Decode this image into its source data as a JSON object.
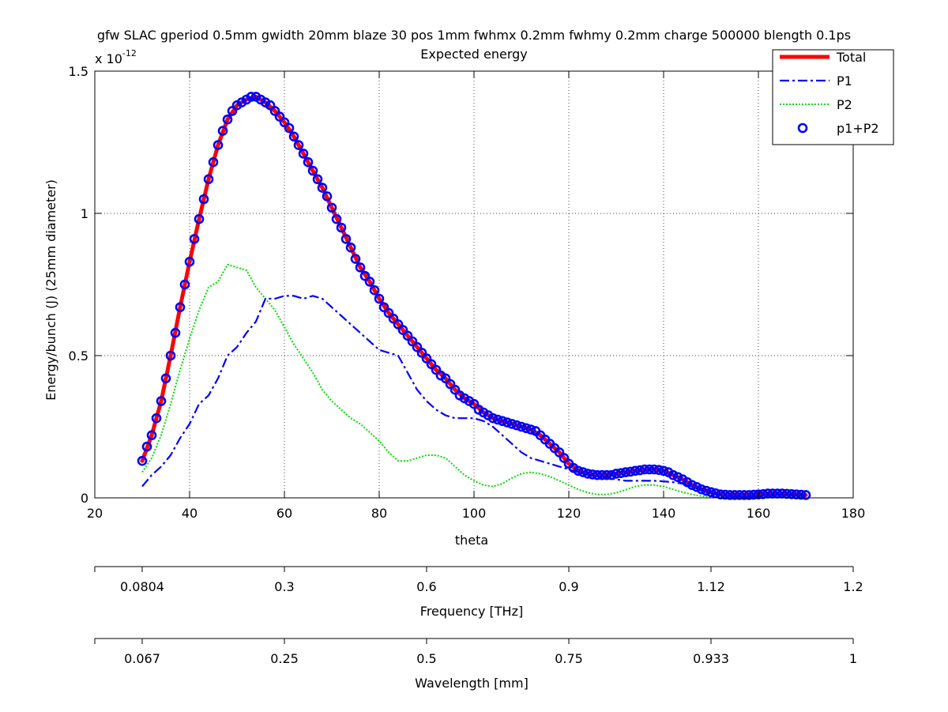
{
  "chart_data": {
    "type": "line",
    "title": "gfw SLAC gperiod 0.5mm gwidth 20mm blaze 30 pos 1mm fwhmx 0.2mm fwhmy 0.2mm charge 500000 blength 0.1ps",
    "subtitle": "Expected energy",
    "xlabel": "theta",
    "ylabel": "Energy/bunch (J) (25mm diameter)",
    "y_exponent_label": "x 10",
    "y_exponent_power": "-12",
    "xlim": [
      20,
      180
    ],
    "ylim": [
      0,
      1.5
    ],
    "grid": true,
    "legend_position": "top-right",
    "x_ticks": [
      20,
      40,
      60,
      80,
      100,
      120,
      140,
      160,
      180
    ],
    "y_ticks": [
      0,
      0.5,
      1,
      1.5
    ],
    "x_tick_labels": [
      "20",
      "40",
      "60",
      "80",
      "100",
      "120",
      "140",
      "160",
      "180"
    ],
    "y_tick_labels": [
      "0",
      "0.5",
      "1",
      "1.5"
    ],
    "series": [
      {
        "name": "Total",
        "style": "solid",
        "color": "#ff0000",
        "x": [
          30,
          32,
          34,
          36,
          38,
          40,
          42,
          44,
          46,
          48,
          50,
          52,
          54,
          56,
          58,
          60,
          62,
          64,
          66,
          68,
          70,
          72,
          74,
          76,
          78,
          80,
          82,
          84,
          86,
          88,
          90,
          92,
          94,
          96,
          98,
          100,
          102,
          104,
          106,
          108,
          110,
          112,
          114,
          116,
          118,
          120,
          122,
          124,
          126,
          128,
          130,
          132,
          134,
          136,
          138,
          140,
          142,
          144,
          146,
          148,
          150,
          152,
          154,
          156,
          158,
          160,
          162,
          164,
          166,
          168,
          170
        ],
        "values": [
          0.13,
          0.22,
          0.34,
          0.5,
          0.67,
          0.83,
          0.98,
          1.12,
          1.24,
          1.33,
          1.38,
          1.4,
          1.41,
          1.39,
          1.36,
          1.32,
          1.27,
          1.21,
          1.15,
          1.09,
          1.02,
          0.95,
          0.88,
          0.81,
          0.76,
          0.7,
          0.65,
          0.61,
          0.57,
          0.53,
          0.49,
          0.45,
          0.42,
          0.38,
          0.35,
          0.33,
          0.3,
          0.28,
          0.27,
          0.26,
          0.25,
          0.24,
          0.22,
          0.19,
          0.16,
          0.12,
          0.095,
          0.085,
          0.08,
          0.08,
          0.085,
          0.09,
          0.095,
          0.1,
          0.1,
          0.095,
          0.08,
          0.065,
          0.045,
          0.03,
          0.02,
          0.012,
          0.01,
          0.01,
          0.01,
          0.012,
          0.015,
          0.015,
          0.014,
          0.012,
          0.01
        ]
      },
      {
        "name": "P1",
        "style": "dashdot",
        "color": "#0000ff",
        "x": [
          30,
          32,
          34,
          36,
          38,
          40,
          42,
          44,
          46,
          48,
          50,
          52,
          54,
          56,
          58,
          60,
          62,
          64,
          66,
          68,
          70,
          72,
          74,
          76,
          78,
          80,
          82,
          84,
          86,
          88,
          90,
          92,
          94,
          96,
          98,
          100,
          102,
          104,
          106,
          108,
          110,
          112,
          114,
          116,
          118,
          120,
          122,
          124,
          126,
          128,
          130,
          132,
          134,
          136,
          138,
          140,
          142,
          144,
          146,
          148,
          150,
          152,
          154,
          156,
          158,
          160,
          162,
          164,
          166,
          168,
          170
        ],
        "values": [
          0.04,
          0.08,
          0.11,
          0.15,
          0.21,
          0.26,
          0.33,
          0.36,
          0.42,
          0.5,
          0.53,
          0.58,
          0.62,
          0.7,
          0.7,
          0.71,
          0.71,
          0.7,
          0.71,
          0.7,
          0.67,
          0.64,
          0.61,
          0.58,
          0.55,
          0.52,
          0.51,
          0.5,
          0.44,
          0.38,
          0.34,
          0.31,
          0.29,
          0.28,
          0.28,
          0.28,
          0.27,
          0.25,
          0.22,
          0.19,
          0.16,
          0.14,
          0.13,
          0.12,
          0.11,
          0.1,
          0.09,
          0.08,
          0.075,
          0.07,
          0.065,
          0.06,
          0.06,
          0.06,
          0.06,
          0.058,
          0.055,
          0.05,
          0.04,
          0.025,
          0.015,
          0.01,
          0.008,
          0.005,
          0.005,
          0.006,
          0.008,
          0.01,
          0.01,
          0.009,
          0.008
        ]
      },
      {
        "name": "P2",
        "style": "dotted",
        "color": "#00dd00",
        "x": [
          30,
          32,
          34,
          36,
          38,
          40,
          42,
          44,
          46,
          48,
          50,
          52,
          54,
          56,
          58,
          60,
          62,
          64,
          66,
          68,
          70,
          72,
          74,
          76,
          78,
          80,
          82,
          84,
          86,
          88,
          90,
          92,
          94,
          96,
          98,
          100,
          102,
          104,
          106,
          108,
          110,
          112,
          114,
          116,
          118,
          120,
          122,
          124,
          126,
          128,
          130,
          132,
          134,
          136,
          138,
          140,
          142,
          144,
          146,
          148,
          150,
          152,
          154,
          156,
          158,
          160,
          162,
          164,
          166,
          168,
          170
        ],
        "values": [
          0.09,
          0.14,
          0.22,
          0.33,
          0.45,
          0.56,
          0.66,
          0.74,
          0.76,
          0.82,
          0.81,
          0.8,
          0.74,
          0.7,
          0.66,
          0.6,
          0.54,
          0.49,
          0.44,
          0.38,
          0.34,
          0.31,
          0.28,
          0.26,
          0.23,
          0.2,
          0.16,
          0.13,
          0.13,
          0.14,
          0.15,
          0.15,
          0.14,
          0.11,
          0.08,
          0.06,
          0.045,
          0.04,
          0.05,
          0.07,
          0.085,
          0.09,
          0.085,
          0.075,
          0.06,
          0.045,
          0.03,
          0.018,
          0.012,
          0.012,
          0.018,
          0.028,
          0.04,
          0.045,
          0.045,
          0.04,
          0.03,
          0.02,
          0.012,
          0.006,
          0.004,
          0.003,
          0.003,
          0.003,
          0.003,
          0.004,
          0.005,
          0.006,
          0.006,
          0.005,
          0.004
        ]
      },
      {
        "name": "p1+P2",
        "style": "markers",
        "color": "#0000ff",
        "x": [
          30,
          31,
          32,
          33,
          34,
          35,
          36,
          37,
          38,
          39,
          40,
          41,
          42,
          43,
          44,
          45,
          46,
          47,
          48,
          49,
          50,
          51,
          52,
          53,
          54,
          55,
          56,
          57,
          58,
          59,
          60,
          61,
          62,
          63,
          64,
          65,
          66,
          67,
          68,
          69,
          70,
          71,
          72,
          73,
          74,
          75,
          76,
          77,
          78,
          79,
          80,
          81,
          82,
          83,
          84,
          85,
          86,
          87,
          88,
          89,
          90,
          91,
          92,
          93,
          94,
          95,
          96,
          97,
          98,
          99,
          100,
          101,
          102,
          103,
          104,
          105,
          106,
          107,
          108,
          109,
          110,
          111,
          112,
          113,
          114,
          115,
          116,
          117,
          118,
          119,
          120,
          121,
          122,
          123,
          124,
          125,
          126,
          127,
          128,
          129,
          130,
          131,
          132,
          133,
          134,
          135,
          136,
          137,
          138,
          139,
          140,
          141,
          142,
          143,
          144,
          145,
          146,
          147,
          148,
          149,
          150,
          151,
          152,
          153,
          154,
          155,
          156,
          157,
          158,
          159,
          160,
          161,
          162,
          163,
          164,
          165,
          166,
          167,
          168,
          169,
          170
        ],
        "values": [
          0.13,
          0.18,
          0.22,
          0.28,
          0.34,
          0.42,
          0.5,
          0.58,
          0.67,
          0.75,
          0.83,
          0.91,
          0.98,
          1.05,
          1.12,
          1.18,
          1.24,
          1.29,
          1.33,
          1.36,
          1.38,
          1.39,
          1.4,
          1.41,
          1.41,
          1.4,
          1.39,
          1.38,
          1.36,
          1.34,
          1.32,
          1.3,
          1.27,
          1.24,
          1.21,
          1.18,
          1.15,
          1.12,
          1.09,
          1.06,
          1.02,
          0.98,
          0.95,
          0.91,
          0.88,
          0.84,
          0.81,
          0.78,
          0.76,
          0.73,
          0.7,
          0.67,
          0.65,
          0.63,
          0.61,
          0.59,
          0.57,
          0.55,
          0.53,
          0.51,
          0.49,
          0.47,
          0.45,
          0.43,
          0.42,
          0.4,
          0.38,
          0.36,
          0.35,
          0.34,
          0.33,
          0.31,
          0.3,
          0.29,
          0.28,
          0.275,
          0.27,
          0.265,
          0.26,
          0.255,
          0.25,
          0.245,
          0.24,
          0.235,
          0.22,
          0.205,
          0.19,
          0.175,
          0.16,
          0.14,
          0.12,
          0.105,
          0.095,
          0.09,
          0.085,
          0.082,
          0.08,
          0.08,
          0.08,
          0.08,
          0.085,
          0.087,
          0.09,
          0.092,
          0.095,
          0.097,
          0.1,
          0.1,
          0.1,
          0.098,
          0.095,
          0.09,
          0.08,
          0.073,
          0.065,
          0.055,
          0.045,
          0.038,
          0.03,
          0.025,
          0.02,
          0.016,
          0.012,
          0.011,
          0.01,
          0.01,
          0.01,
          0.01,
          0.01,
          0.011,
          0.012,
          0.013,
          0.015,
          0.015,
          0.015,
          0.015,
          0.014,
          0.013,
          0.012,
          0.011,
          0.01
        ]
      }
    ],
    "secondary_axes": [
      {
        "label": "Frequency [THz]",
        "ticks": [
          {
            "theta": 30,
            "label": "0.0804"
          },
          {
            "theta": 60,
            "label": "0.3"
          },
          {
            "theta": 90,
            "label": "0.6"
          },
          {
            "theta": 120,
            "label": "0.9"
          },
          {
            "theta": 150,
            "label": "1.12"
          },
          {
            "theta": 180,
            "label": "1.2"
          }
        ]
      },
      {
        "label": "Wavelength [mm]",
        "ticks": [
          {
            "theta": 30,
            "label": "0.067"
          },
          {
            "theta": 60,
            "label": "0.25"
          },
          {
            "theta": 90,
            "label": "0.5"
          },
          {
            "theta": 120,
            "label": "0.75"
          },
          {
            "theta": 150,
            "label": "0.933"
          },
          {
            "theta": 180,
            "label": "1"
          }
        ]
      }
    ]
  }
}
